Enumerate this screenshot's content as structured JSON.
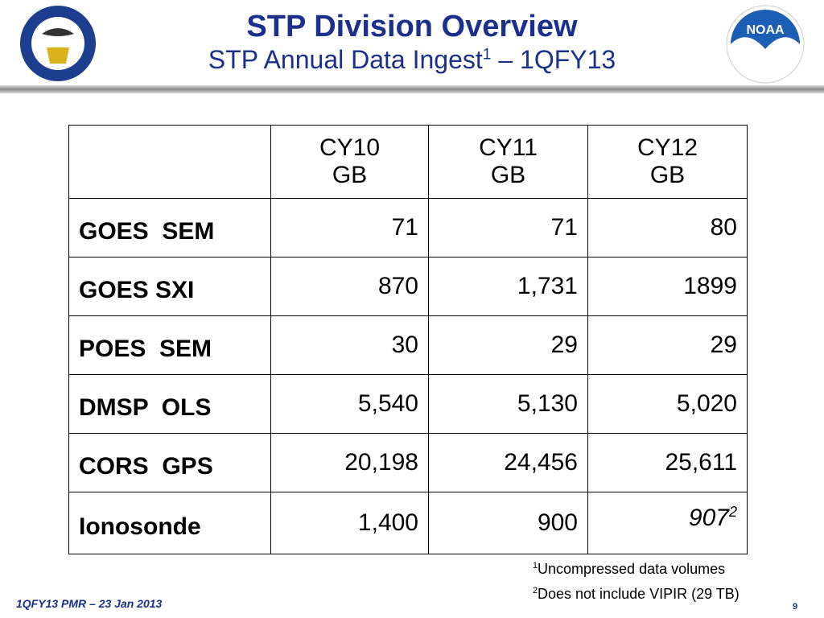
{
  "header": {
    "title": "STP Division Overview",
    "subtitle": "STP Annual Data Ingest",
    "subtitle_sup": "1",
    "subtitle_suffix": "– 1QFY13"
  },
  "logos": {
    "noaa": "NOAA"
  },
  "table": {
    "columns": [
      {
        "year": "CY10",
        "unit": "GB"
      },
      {
        "year": "CY11",
        "unit": "GB"
      },
      {
        "year": "CY12",
        "unit": "GB"
      }
    ],
    "rows": [
      {
        "label": "GOES  SEM",
        "values": [
          "71",
          "71",
          "80"
        ]
      },
      {
        "label": "GOES SXI",
        "values": [
          "870",
          "1,731",
          "1899"
        ]
      },
      {
        "label": "POES  SEM",
        "values": [
          "30",
          "29",
          "29"
        ]
      },
      {
        "label": "DMSP  OLS",
        "values": [
          "5,540",
          "5,130",
          "5,020"
        ]
      },
      {
        "label": "CORS  GPS",
        "values": [
          "20,198",
          "24,456",
          "25,611"
        ]
      },
      {
        "label": "Ionosonde",
        "values": [
          "1,400",
          "900",
          "907"
        ],
        "last_value_note": "2"
      }
    ]
  },
  "footnotes": [
    {
      "mark": "1",
      "text": "Uncompressed data volumes"
    },
    {
      "mark": "2",
      "text": "Does not include VIPIR (29 TB)"
    }
  ],
  "footer": {
    "text": "1QFY13 PMR – 23 Jan 2013",
    "page": "9"
  }
}
